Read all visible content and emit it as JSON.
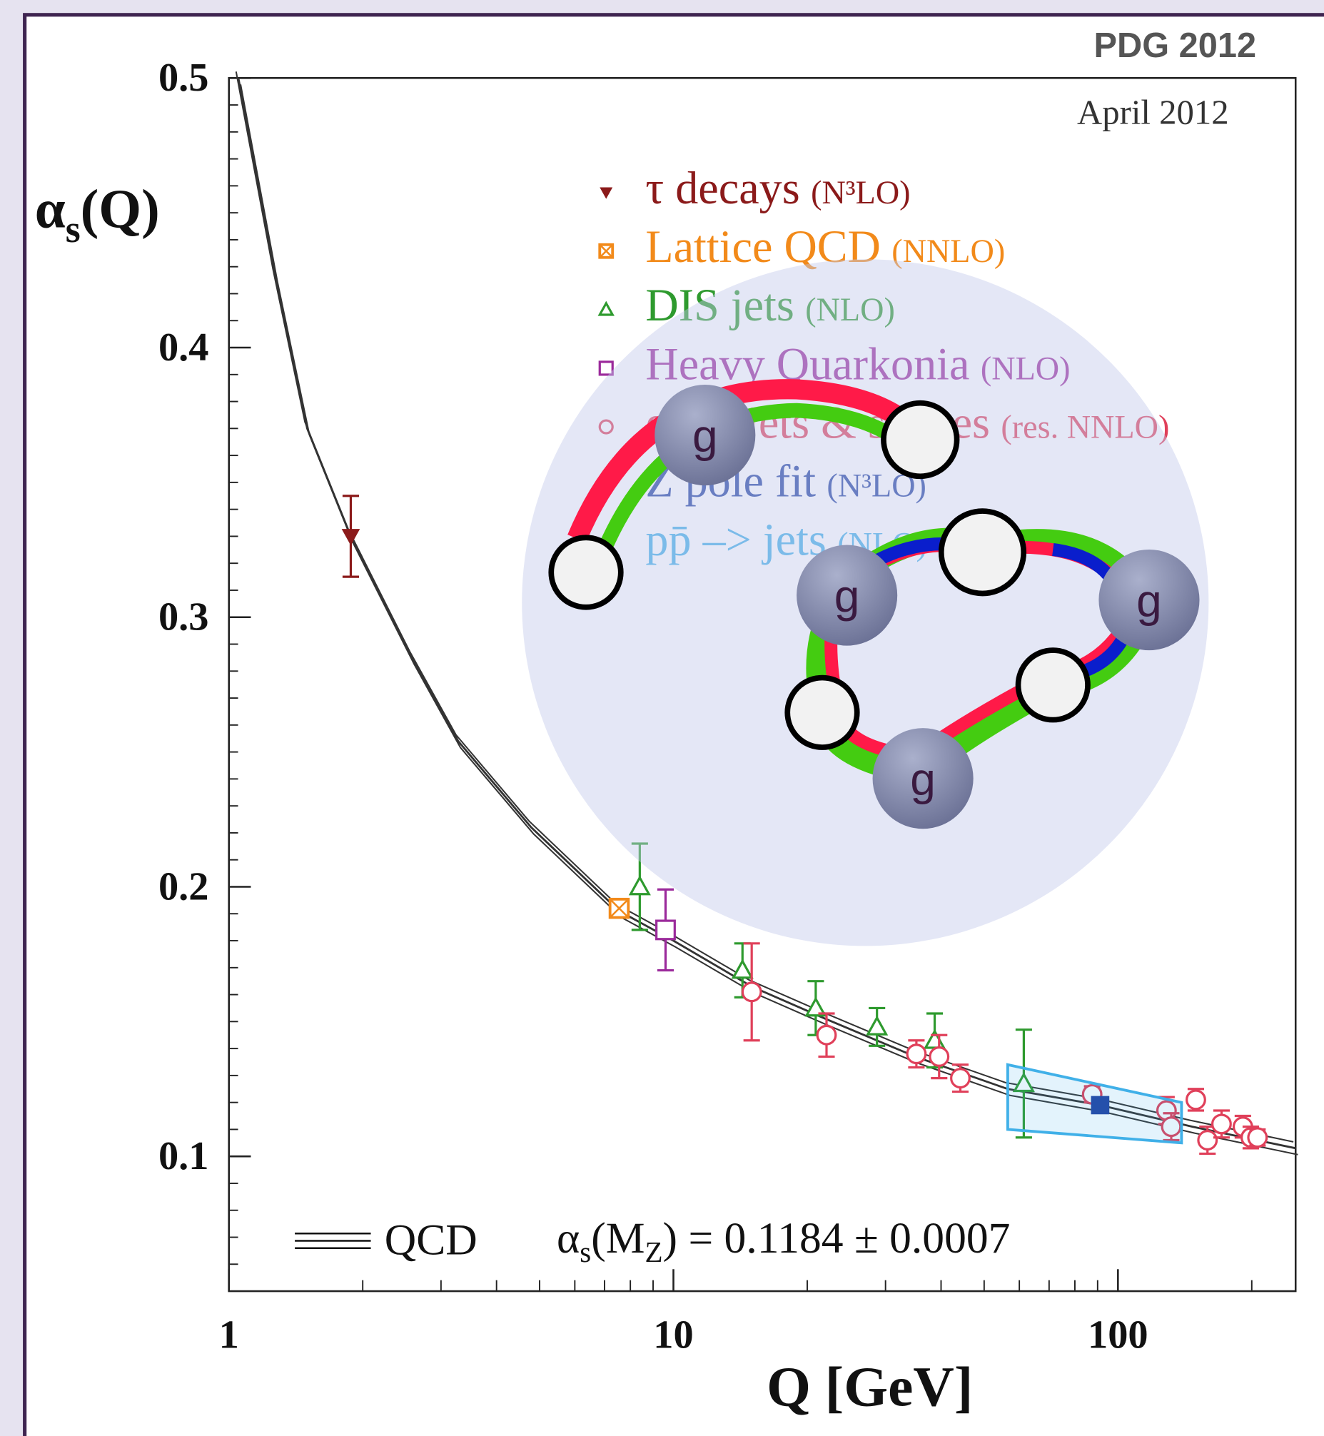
{
  "chart_data": {
    "type": "scatter",
    "badge": "PDG 2012",
    "date": "April 2012",
    "y_label": {
      "symbol": "α",
      "subscript": "s",
      "argument": "(Q)"
    },
    "x_label": "Q [GeV]",
    "log_x": true,
    "xlim": [
      1,
      251
    ],
    "ylim": [
      0.05,
      0.5
    ],
    "xticks": [
      1,
      10,
      100
    ],
    "xminorticks": [
      2,
      3,
      4,
      5,
      6,
      7,
      8,
      9,
      20,
      30,
      40,
      50,
      60,
      70,
      80,
      90,
      200
    ],
    "yticks": [
      0.1,
      0.2,
      0.3,
      0.4,
      0.5
    ],
    "yminorticks": [
      0.06,
      0.07,
      0.08,
      0.09,
      0.11,
      0.12,
      0.13,
      0.14,
      0.15,
      0.16,
      0.17,
      0.18,
      0.19,
      0.21,
      0.22,
      0.23,
      0.24,
      0.25,
      0.26,
      0.27,
      0.28,
      0.29,
      0.31,
      0.32,
      0.33,
      0.34,
      0.35,
      0.36,
      0.37,
      0.38,
      0.39,
      0.41,
      0.42,
      0.43,
      0.44,
      0.45,
      0.46,
      0.47,
      0.48,
      0.49
    ],
    "series": [
      {
        "name": "τ decays",
        "detail": "(N³LO)",
        "color": "#8b1a1a",
        "marker": "triangle-down-filled",
        "x": [
          1.88
        ],
        "values": [
          0.33
        ],
        "errors": [
          0.015
        ]
      },
      {
        "name": "Lattice QCD",
        "detail": "(NNLO)",
        "color": "#f28a1a",
        "marker": "square-cross",
        "x": [
          7.55
        ],
        "values": [
          0.192
        ],
        "errors": [
          0.002
        ]
      },
      {
        "name": "DIS jets",
        "detail": "(NLO)",
        "color": "#2e9a2e",
        "marker": "triangle-open",
        "x": [
          8.4,
          14.3,
          20.9,
          28.7,
          38.7,
          61.4
        ],
        "values": [
          0.2,
          0.169,
          0.155,
          0.148,
          0.143,
          0.127
        ],
        "errors": [
          0.016,
          0.01,
          0.01,
          0.007,
          0.01,
          0.02
        ]
      },
      {
        "name": "Heavy Quarkonia",
        "detail": "(NLO)",
        "color": "#9b2a9b",
        "marker": "square-open",
        "x": [
          9.6
        ],
        "values": [
          0.184
        ],
        "errors": [
          0.015
        ]
      },
      {
        "name": "e⁺e⁻ jets & shapes",
        "detail": "(res. NNLO)",
        "color": "#e0405a",
        "marker": "circle-open",
        "x": [
          15,
          22.1,
          35.2,
          39.6,
          44.2,
          87.5,
          128.6,
          131.8,
          149.7,
          159,
          171,
          191,
          199,
          206
        ],
        "values": [
          0.161,
          0.145,
          0.138,
          0.137,
          0.129,
          0.123,
          0.117,
          0.111,
          0.121,
          0.106,
          0.112,
          0.111,
          0.107,
          0.107
        ],
        "errors": [
          0.018,
          0.008,
          0.005,
          0.008,
          0.005,
          0.003,
          0.005,
          0.005,
          0.004,
          0.005,
          0.005,
          0.004,
          0.004,
          0.003
        ]
      },
      {
        "name": "Z pole fit",
        "detail": "(N³LO)",
        "color": "#2040a0",
        "marker": "square-filled",
        "x": [
          91.2
        ],
        "values": [
          0.119
        ]
      },
      {
        "name": "pp̄ –> jets",
        "detail": "(NLO)",
        "color": "#40b0e8",
        "marker": "band",
        "x": [
          56.5,
          139
        ],
        "upper": [
          0.134,
          0.12
        ],
        "lower": [
          0.11,
          0.105
        ]
      }
    ],
    "qcd_curve": {
      "name": "QCD",
      "color": "#333333",
      "x": [
        1.05,
        1.27,
        1.5,
        1.88,
        2.58,
        3.28,
        4.79,
        7.55,
        10,
        15,
        22,
        35,
        56.5,
        91,
        147,
        251
      ],
      "values": [
        0.5,
        0.427,
        0.37,
        0.33,
        0.285,
        0.254,
        0.222,
        0.191,
        0.18,
        0.163,
        0.151,
        0.137,
        0.125,
        0.119,
        0.111,
        0.103
      ]
    },
    "annotation": {
      "symbol": "α",
      "subscript": "s",
      "argument_open": "(M",
      "argument_subscript": "Z",
      "rest": ") = 0.1184 ± 0.0007"
    },
    "overlay": {
      "gluon_labels": [
        "g",
        "g",
        "g",
        "g"
      ]
    }
  }
}
